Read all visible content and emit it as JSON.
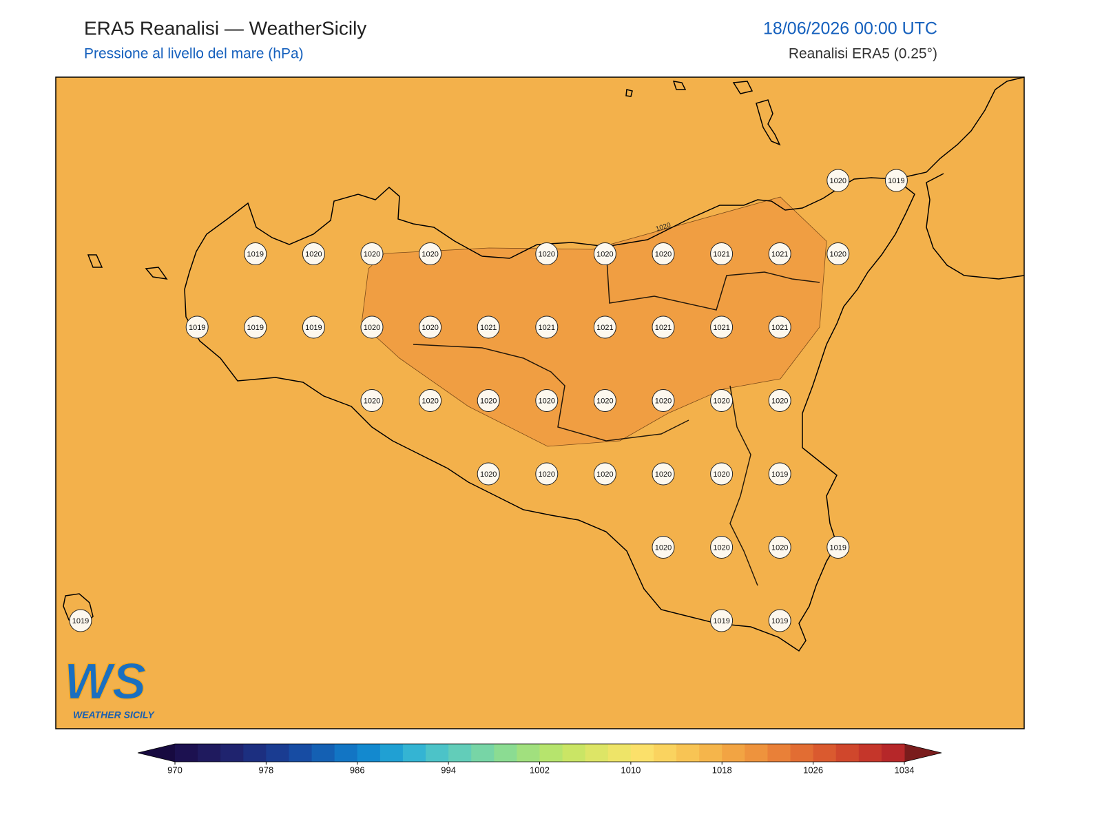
{
  "header": {
    "title": "ERA5 Reanalisi — WeatherSicily",
    "subtitle": "Pressione al livello del mare (hPa)",
    "datetime": "18/06/2026 00:00 UTC",
    "source": "Reanalisi ERA5 (0.25°)"
  },
  "map": {
    "field_color": "#f3b14b",
    "contour": {
      "label": "1020",
      "fill_color": "#f09e42"
    },
    "stations": {
      "rows": [
        [
          null,
          null,
          null,
          null,
          null,
          null,
          null,
          null,
          null,
          null,
          null,
          null,
          null,
          1020,
          1019
        ],
        [
          null,
          null,
          null,
          1019,
          1020,
          1020,
          1020,
          null,
          1020,
          1020,
          1020,
          1021,
          1021,
          1020,
          null
        ],
        [
          null,
          null,
          1019,
          1019,
          1019,
          1020,
          1020,
          1021,
          1021,
          1021,
          1021,
          1021,
          1021,
          null,
          null
        ],
        [
          null,
          null,
          null,
          null,
          null,
          1020,
          1020,
          1020,
          1020,
          1020,
          1020,
          1020,
          1020,
          null,
          null
        ],
        [
          null,
          null,
          null,
          null,
          null,
          null,
          null,
          1020,
          1020,
          1020,
          1020,
          1020,
          1019,
          null,
          null
        ],
        [
          null,
          null,
          null,
          null,
          null,
          null,
          null,
          null,
          null,
          null,
          1020,
          1020,
          1020,
          1019,
          null
        ],
        [
          1019,
          null,
          null,
          null,
          null,
          null,
          null,
          null,
          null,
          null,
          null,
          1019,
          1019,
          null,
          null
        ]
      ]
    }
  },
  "colorbar": {
    "lim": [
      970,
      1034
    ],
    "ticks": [
      970,
      978,
      986,
      994,
      1002,
      1010,
      1018,
      1026,
      1034
    ],
    "under_color": "#170a40",
    "over_color": "#7a1c1c",
    "colors": [
      "#1c1150",
      "#1f1a5e",
      "#1f236e",
      "#1c2f80",
      "#1a3c91",
      "#174ca3",
      "#1460b3",
      "#1275c4",
      "#1389cf",
      "#20a0d3",
      "#34b4d3",
      "#4cc3c8",
      "#62cdb9",
      "#77d5a6",
      "#8bdc92",
      "#a1e07e",
      "#b6e46d",
      "#cae565",
      "#dde566",
      "#eee468",
      "#fbe06a",
      "#fad35f",
      "#f8c454",
      "#f5b54b",
      "#f2a443",
      "#ee933d",
      "#e98038",
      "#e26d33",
      "#da5a2f",
      "#d0472c",
      "#c5362a",
      "#b62729"
    ]
  },
  "logo": {
    "mark": "WS",
    "text": "WEATHER SICILY"
  }
}
